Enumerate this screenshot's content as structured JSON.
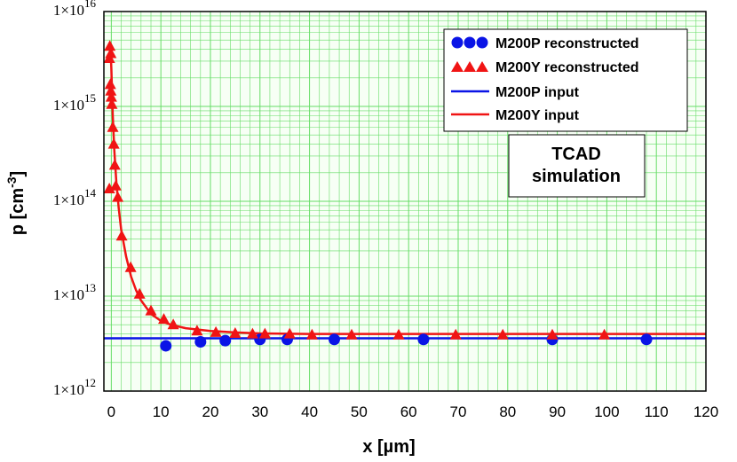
{
  "chart_data": {
    "type": "scatter",
    "title": "",
    "xlabel": "x [µm]",
    "ylabel_main": "p [cm",
    "ylabel_sup": "-3",
    "ylabel_end": "]",
    "xlim": [
      -1.5,
      120
    ],
    "ylim_log10": [
      12,
      16
    ],
    "x_ticks": [
      0,
      10,
      20,
      30,
      40,
      50,
      60,
      70,
      80,
      90,
      100,
      110,
      120
    ],
    "x_tick_labels": [
      "0",
      "10",
      "20",
      "30",
      "40",
      "50",
      "60",
      "70",
      "80",
      "90",
      "100",
      "110",
      "120"
    ],
    "y_tick_exponents": [
      12,
      13,
      14,
      15,
      16
    ],
    "y_tick_labels": [
      {
        "base": "1×10",
        "exp": "12"
      },
      {
        "base": "1×10",
        "exp": "13"
      },
      {
        "base": "1×10",
        "exp": "14"
      },
      {
        "base": "1×10",
        "exp": "15"
      },
      {
        "base": "1×10",
        "exp": "16"
      }
    ],
    "grid": true,
    "legend_position": "top-right",
    "colors": {
      "blue": "#0a14e6",
      "red": "#f01414",
      "grid": "#66dd66",
      "plot_bg": "#f7fff5"
    },
    "series": [
      {
        "name": "M200P reconstructed",
        "legend_label": "M200P reconstructed",
        "kind": "points",
        "marker": "circle",
        "color": "#0a14e6",
        "x": [
          11,
          18,
          23,
          30,
          35.5,
          45,
          63,
          89,
          108
        ],
        "y": [
          3000000000000.0,
          3300000000000.0,
          3400000000000.0,
          3500000000000.0,
          3500000000000.0,
          3500000000000.0,
          3500000000000.0,
          3500000000000.0,
          3500000000000.0
        ]
      },
      {
        "name": "M200Y reconstructed",
        "legend_label": "M200Y reconstructed",
        "kind": "points",
        "marker": "triangle",
        "color": "#f01414",
        "x": [
          -0.3,
          -0.1,
          -0.4,
          -0.2,
          -0.1,
          0,
          0.1,
          0.3,
          0.5,
          0.7,
          0.9,
          1.3,
          -0.4,
          2.1,
          3.9,
          5.7,
          8,
          10.6,
          12.5,
          17.3,
          21.1,
          25,
          28.5,
          31,
          36,
          40.5,
          48.5,
          58,
          69.5,
          79,
          89,
          99.5
        ],
        "y": [
          4300000000000000.0,
          3600000000000000.0,
          3200000000000000.0,
          1700000000000000.0,
          1450000000000000.0,
          1250000000000000.0,
          1050000000000000.0,
          600000000000000.0,
          400000000000000.0,
          240000000000000.0,
          145000000000000.0,
          110000000000000.0,
          135000000000000.0,
          43000000000000.0,
          20000000000000.0,
          10500000000000.0,
          7000000000000.0,
          5700000000000.0,
          5000000000000.0,
          4300000000000.0,
          4150000000000.0,
          4050000000000.0,
          4000000000000.0,
          4000000000000.0,
          4000000000000.0,
          3900000000000.0,
          3900000000000.0,
          3900000000000.0,
          3900000000000.0,
          3900000000000.0,
          3900000000000.0,
          3900000000000.0
        ]
      },
      {
        "name": "M200P input",
        "legend_label": "M200P input",
        "kind": "line",
        "color": "#0a14e6",
        "x": [
          -1.5,
          120
        ],
        "y": [
          3600000000000.0,
          3600000000000.0
        ]
      },
      {
        "name": "M200Y input",
        "legend_label": "M200Y input",
        "kind": "line",
        "color": "#f01414",
        "x": [
          -0.2,
          0,
          0.3,
          0.6,
          1,
          1.5,
          2,
          3,
          4,
          5,
          6,
          8,
          10,
          12,
          15,
          20,
          25,
          30,
          40,
          60,
          80,
          100,
          120
        ],
        "y": [
          4500000000000000.0,
          2500000000000000.0,
          800000000000000.0,
          350000000000000.0,
          160000000000000.0,
          85000000000000.0,
          50000000000000.0,
          26000000000000.0,
          16000000000000.0,
          11500000000000.0,
          9000000000000.0,
          6500000000000.0,
          5500000000000.0,
          5000000000000.0,
          4600000000000.0,
          4300000000000.0,
          4150000000000.0,
          4050000000000.0,
          4000000000000.0,
          4000000000000.0,
          4000000000000.0,
          4000000000000.0,
          4000000000000.0
        ]
      }
    ],
    "annotation": [
      "TCAD",
      "simulation"
    ]
  }
}
